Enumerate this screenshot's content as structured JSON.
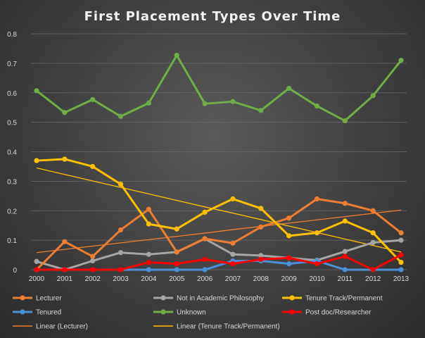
{
  "chart_data": {
    "type": "line",
    "title": "First Placement Types Over Time",
    "xlabel": "",
    "ylabel": "",
    "x": [
      "2000",
      "2001",
      "2002",
      "2003",
      "2004",
      "2005",
      "2006",
      "2007",
      "2008",
      "2009",
      "2010",
      "2011",
      "2012",
      "2013"
    ],
    "ylim": [
      0,
      0.8
    ],
    "yticks": [
      "0",
      "0.1",
      "0.2",
      "0.3",
      "0.4",
      "0.5",
      "0.6",
      "0.7",
      "0.8"
    ],
    "ytick_values": [
      0,
      0.1,
      0.2,
      0.3,
      0.4,
      0.5,
      0.6,
      0.7,
      0.8
    ],
    "grid": true,
    "legend_position": "bottom",
    "series": [
      {
        "name": "Lecturer",
        "color": "#ed7d31",
        "marker": true,
        "values": [
          0,
          0.095,
          0.045,
          0.135,
          0.205,
          0.06,
          0.105,
          0.09,
          0.145,
          0.175,
          0.24,
          0.225,
          0.2,
          0.125
        ]
      },
      {
        "name": "Not in Academic Philosophy",
        "color": "#a5a5a5",
        "marker": true,
        "values": [
          0.028,
          0,
          0.03,
          0.058,
          0.052,
          0.06,
          0.105,
          0.052,
          0.048,
          0.04,
          0.032,
          0.062,
          0.092,
          0.1
        ]
      },
      {
        "name": "Tenure Track/Permanent",
        "color": "#ffc000",
        "marker": true,
        "values": [
          0.37,
          0.375,
          0.35,
          0.29,
          0.155,
          0.138,
          0.195,
          0.24,
          0.208,
          0.115,
          0.125,
          0.165,
          0.125,
          0.025
        ]
      },
      {
        "name": "Tenured",
        "color": "#4a90d9",
        "marker": true,
        "values": [
          0,
          0,
          0,
          0,
          0,
          0,
          0,
          0.03,
          0.03,
          0.02,
          0.03,
          0,
          0,
          0
        ]
      },
      {
        "name": "Unknown",
        "color": "#70ad47",
        "marker": true,
        "values": [
          0.607,
          0.533,
          0.577,
          0.52,
          0.565,
          0.727,
          0.563,
          0.57,
          0.54,
          0.615,
          0.555,
          0.505,
          0.59,
          0.71
        ]
      },
      {
        "name": "Post doc/Researcher",
        "color": "#ff0000",
        "marker": true,
        "values": [
          0,
          0,
          0,
          0,
          0.025,
          0.02,
          0.035,
          0.02,
          0.035,
          0.04,
          0.02,
          0.045,
          0,
          0.05
        ]
      },
      {
        "name": "Linear (Lecturer)",
        "color": "#ed7d31",
        "marker": false,
        "trendline": true,
        "values": [
          0.058,
          0.069,
          0.08,
          0.091,
          0.102,
          0.113,
          0.124,
          0.136,
          0.147,
          0.158,
          0.169,
          0.18,
          0.191,
          0.202
        ]
      },
      {
        "name": "Linear (Tenure Track/Permanent)",
        "color": "#ffc000",
        "marker": false,
        "trendline": true,
        "values": [
          0.345,
          0.323,
          0.301,
          0.279,
          0.257,
          0.235,
          0.213,
          0.192,
          0.17,
          0.148,
          0.126,
          0.104,
          0.082,
          0.06
        ]
      }
    ],
    "legend": [
      {
        "label": "Lecturer",
        "series": 0
      },
      {
        "label": "Not in Academic Philosophy",
        "series": 1
      },
      {
        "label": "Tenure Track/Permanent",
        "series": 2
      },
      {
        "label": "Tenured",
        "series": 3
      },
      {
        "label": "Unknown",
        "series": 4
      },
      {
        "label": "Post doc/Researcher",
        "series": 5
      },
      {
        "label": "Linear (Lecturer)",
        "series": 6
      },
      {
        "label": "Linear (Tenure Track/Permanent)",
        "series": 7
      }
    ]
  }
}
